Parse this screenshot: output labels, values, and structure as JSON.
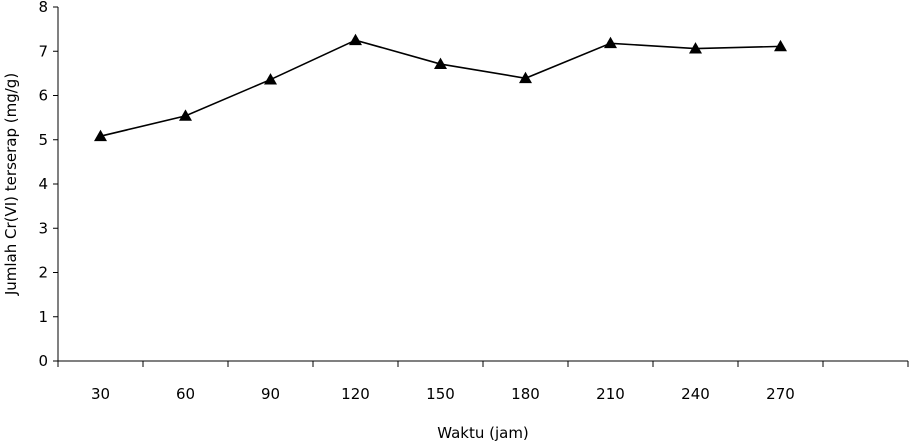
{
  "chart_data": {
    "type": "line",
    "title": "",
    "xlabel": "Waktu (jam)",
    "ylabel": "Jumlah Cr(VI) terserap (mg/g)",
    "categories": [
      "30",
      "60",
      "90",
      "120",
      "150",
      "180",
      "210",
      "240",
      "270"
    ],
    "series": [
      {
        "values": [
          5.08,
          5.54,
          6.36,
          7.25,
          6.71,
          6.39,
          7.18,
          7.06,
          7.11
        ],
        "color": "#000000",
        "marker": "triangle"
      }
    ],
    "ylim": [
      0,
      8
    ],
    "yticks": [
      "0",
      "1",
      "2",
      "3",
      "4",
      "5",
      "6",
      "7",
      "8"
    ],
    "category_slots": 9,
    "grid": false,
    "legend": "none"
  }
}
